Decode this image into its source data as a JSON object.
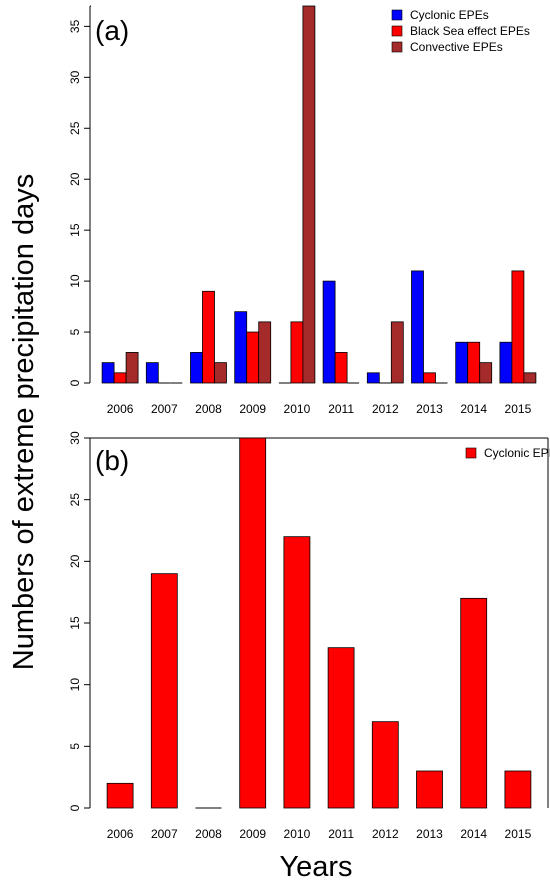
{
  "figure": {
    "ylabel": "Numbers of extreme precipitation days",
    "xlabel": "Years"
  },
  "chart_data": [
    {
      "type": "bar",
      "panel_label": "(a)",
      "categories": [
        "2006",
        "2007",
        "2008",
        "2009",
        "2010",
        "2011",
        "2012",
        "2013",
        "2014",
        "2015"
      ],
      "series": [
        {
          "name": "Cyclonic EPEs",
          "color": "#0000ff",
          "values": [
            2,
            2,
            3,
            7,
            0,
            10,
            1,
            11,
            4,
            4
          ]
        },
        {
          "name": "Black Sea effect EPEs",
          "color": "#ff0000",
          "values": [
            1,
            0,
            9,
            5,
            6,
            3,
            0,
            1,
            4,
            11
          ]
        },
        {
          "name": "Convective EPEs",
          "color": "#a52a2a",
          "values": [
            3,
            0,
            2,
            6,
            37,
            0,
            6,
            0,
            2,
            1
          ]
        }
      ],
      "yticks": [
        0,
        5,
        10,
        15,
        20,
        25,
        30,
        35
      ],
      "ylim": [
        0,
        37
      ],
      "legend_position": "top-right",
      "grid": false
    },
    {
      "type": "bar",
      "panel_label": "(b)",
      "categories": [
        "2006",
        "2007",
        "2008",
        "2009",
        "2010",
        "2011",
        "2012",
        "2013",
        "2014",
        "2015"
      ],
      "series": [
        {
          "name": "Cyclonic EPEs",
          "color": "#ff0000",
          "values": [
            2,
            19,
            0,
            30,
            22,
            13,
            7,
            3,
            17,
            3
          ]
        }
      ],
      "yticks": [
        0,
        5,
        10,
        15,
        20,
        25,
        30
      ],
      "ylim": [
        0,
        30
      ],
      "legend_position": "top-right",
      "grid": false
    }
  ]
}
